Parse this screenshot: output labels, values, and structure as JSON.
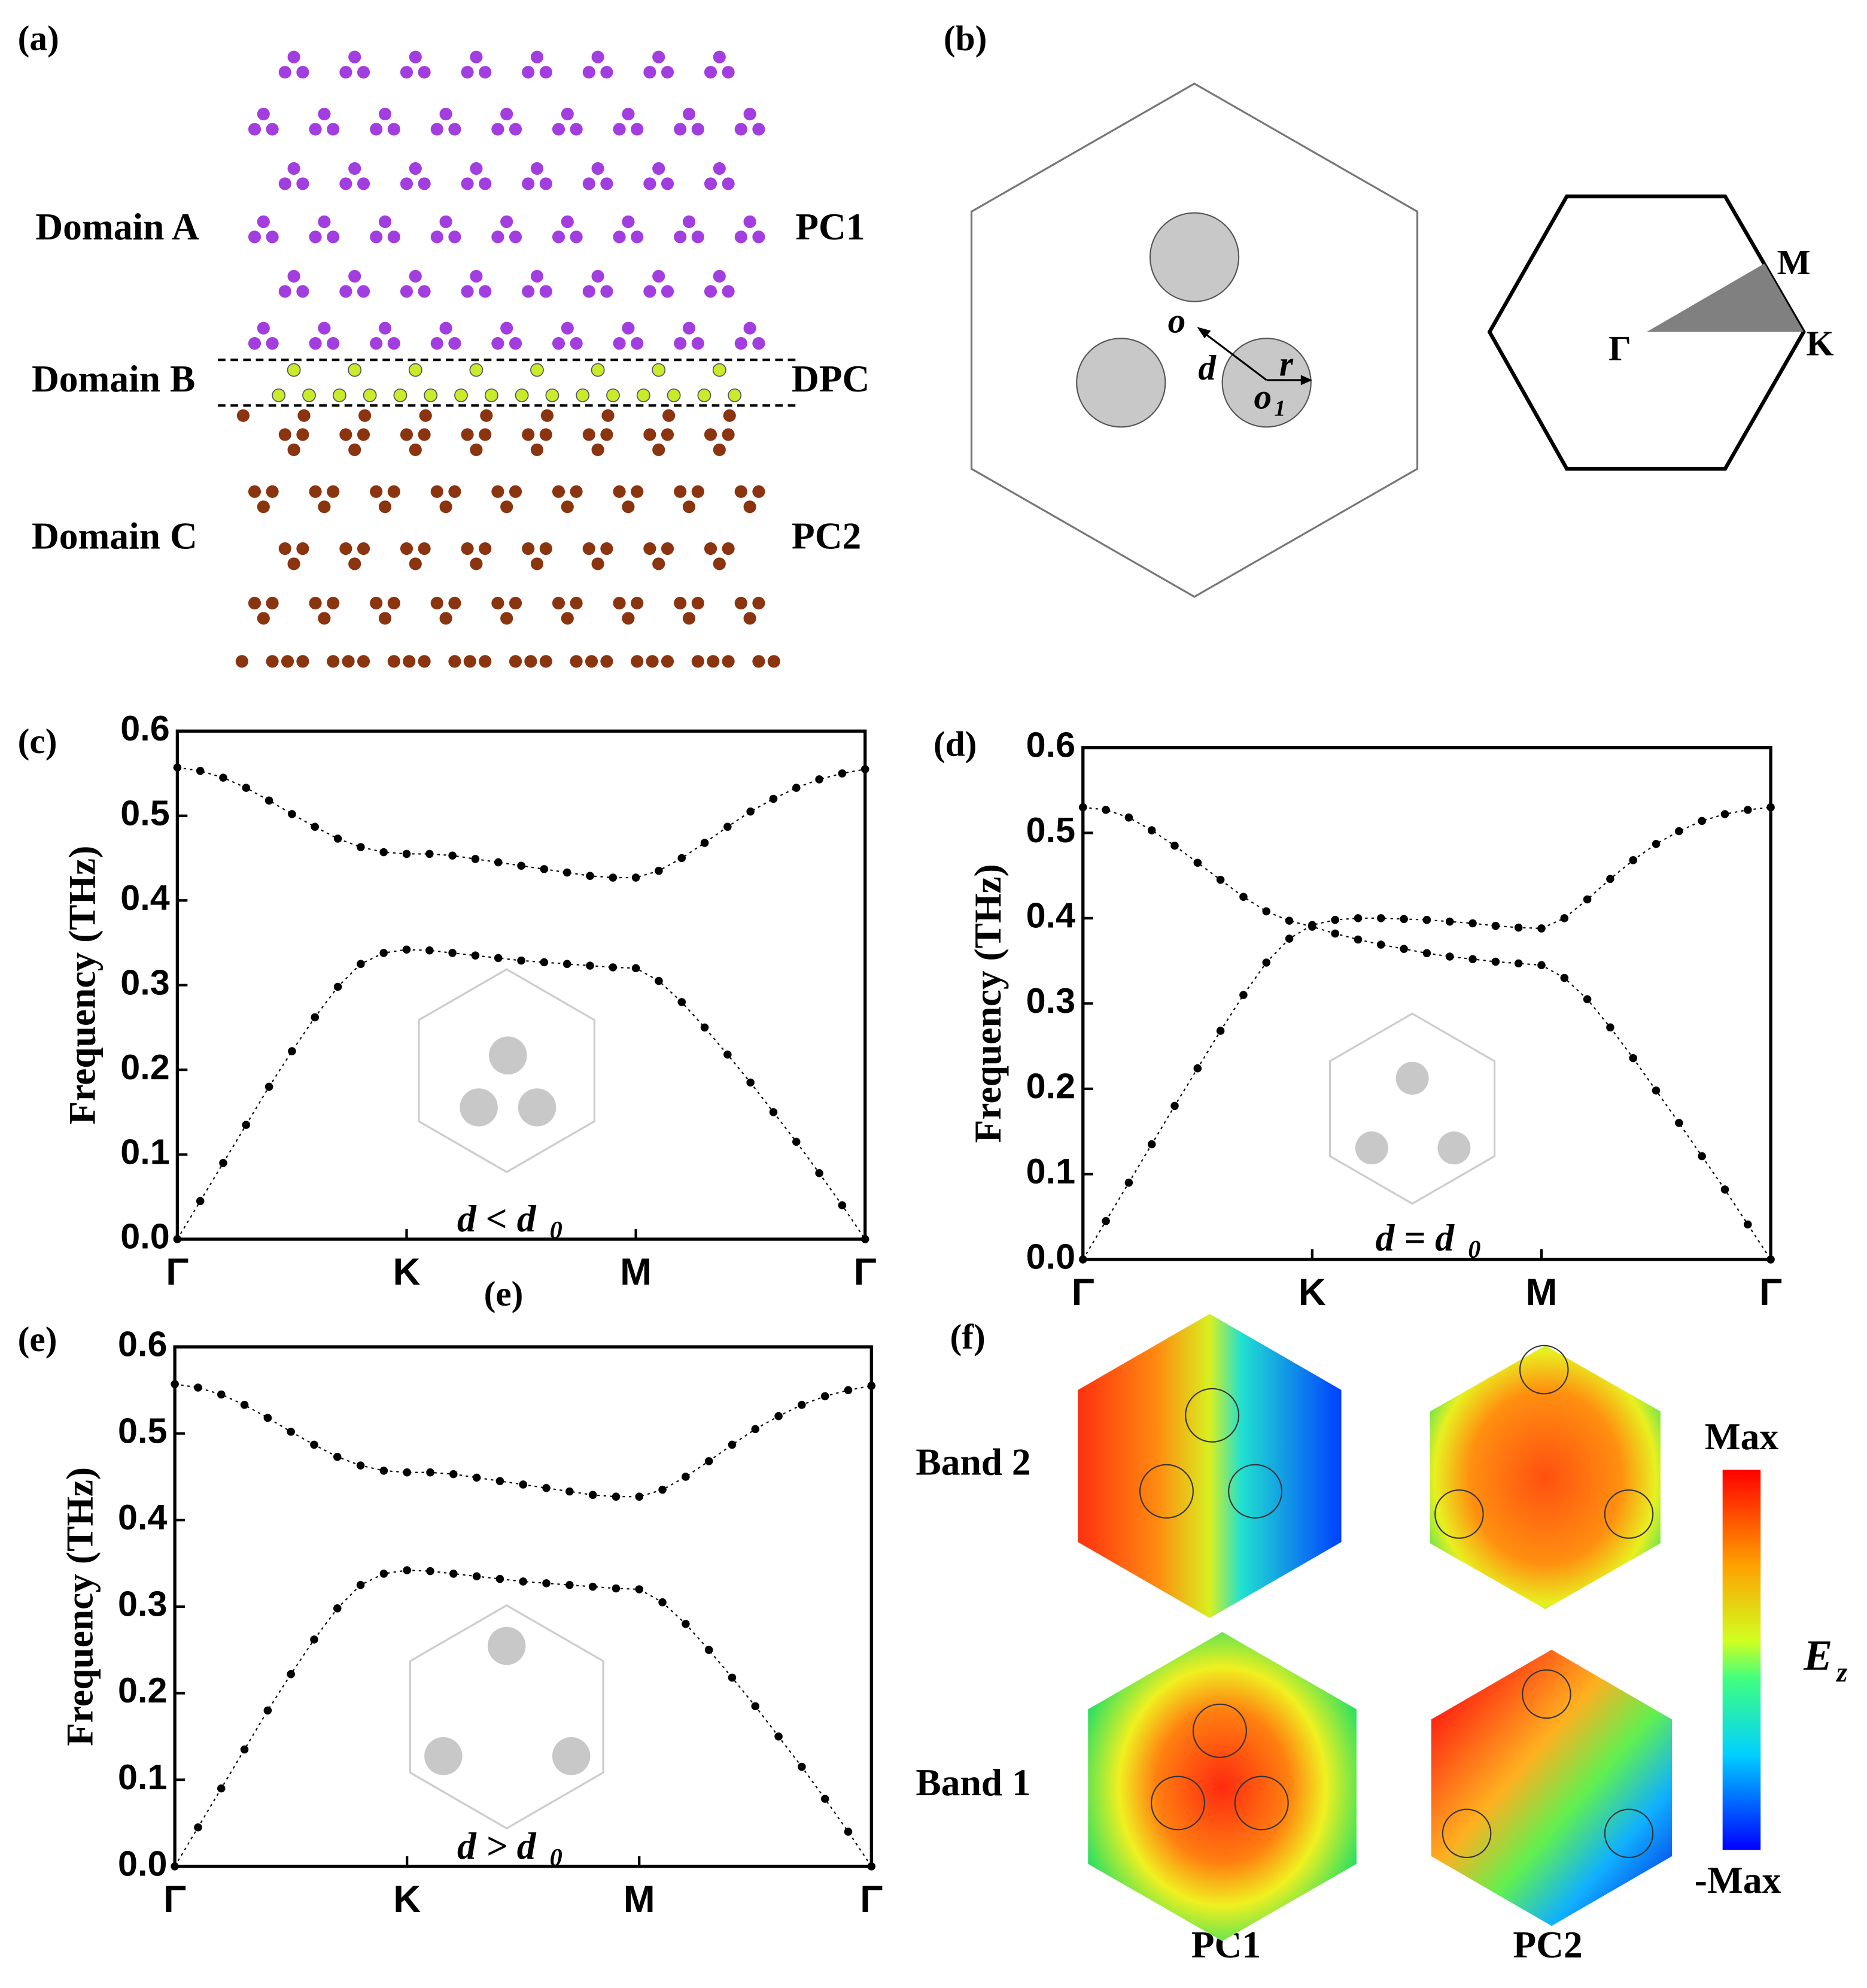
{
  "panel_a": {
    "label": "(a)",
    "domains": [
      "Domain A",
      "Domain B",
      "Domain C"
    ],
    "crystals": [
      "PC1",
      "DPC",
      "PC2"
    ]
  },
  "panel_b": {
    "label": "(b)",
    "cell_labels": {
      "o": "o",
      "d": "d",
      "r": "r",
      "o1": "o",
      "o1_sub": "1"
    },
    "bz_labels": {
      "gamma": "Γ",
      "m": "M",
      "k": "K"
    }
  },
  "stray_label": "(e)",
  "chart_data": [
    {
      "type": "line",
      "panel": "(c)",
      "ylabel": "Frequency (THz)",
      "annotation": "d < d",
      "annotation_sub": "0",
      "x": [
        0,
        0.1,
        0.2,
        0.3,
        0.4,
        0.5,
        0.6,
        0.7,
        0.8,
        0.9,
        1,
        1.1,
        1.2,
        1.3,
        1.4,
        1.5,
        1.6,
        1.7,
        1.8,
        1.9,
        2,
        2.1,
        2.2,
        2.3,
        2.4,
        2.5,
        2.6,
        2.7,
        2.8,
        2.9,
        3
      ],
      "xlim": [
        0,
        3
      ],
      "xticks": [
        {
          "value": 0,
          "label": "Γ"
        },
        {
          "value": 1,
          "label": "K"
        },
        {
          "value": 2,
          "label": "M"
        },
        {
          "value": 3,
          "label": "Γ"
        }
      ],
      "ylim": [
        0,
        0.6
      ],
      "yticks": [
        {
          "value": 0,
          "label": "0.0"
        },
        0.1,
        0.2,
        0.3,
        0.4,
        0.5,
        0.6
      ],
      "grid": false,
      "series": [
        {
          "color": "#000000",
          "values": [
            0.557,
            0.553,
            0.545,
            0.533,
            0.518,
            0.502,
            0.487,
            0.473,
            0.463,
            0.457,
            0.455,
            0.455,
            0.453,
            0.449,
            0.445,
            0.441,
            0.437,
            0.433,
            0.429,
            0.427,
            0.427,
            0.435,
            0.45,
            0.468,
            0.487,
            0.505,
            0.52,
            0.533,
            0.543,
            0.55,
            0.555
          ]
        },
        {
          "color": "#000000",
          "values": [
            0,
            0.045,
            0.09,
            0.135,
            0.18,
            0.222,
            0.262,
            0.298,
            0.325,
            0.338,
            0.342,
            0.341,
            0.338,
            0.335,
            0.332,
            0.329,
            0.327,
            0.325,
            0.323,
            0.321,
            0.32,
            0.305,
            0.28,
            0.25,
            0.218,
            0.185,
            0.15,
            0.115,
            0.078,
            0.04,
            0
          ]
        }
      ]
    },
    {
      "type": "line",
      "panel": "(d)",
      "ylabel": "Frequency (THz)",
      "annotation": "d = d",
      "annotation_sub": "0",
      "x": [
        0,
        0.1,
        0.2,
        0.3,
        0.4,
        0.5,
        0.6,
        0.7,
        0.8,
        0.9,
        1,
        1.1,
        1.2,
        1.3,
        1.4,
        1.5,
        1.6,
        1.7,
        1.8,
        1.9,
        2,
        2.1,
        2.2,
        2.3,
        2.4,
        2.5,
        2.6,
        2.7,
        2.8,
        2.9,
        3
      ],
      "xlim": [
        0,
        3
      ],
      "xticks": [
        {
          "value": 0,
          "label": "Γ"
        },
        {
          "value": 1,
          "label": "K"
        },
        {
          "value": 2,
          "label": "M"
        },
        {
          "value": 3,
          "label": "Γ"
        }
      ],
      "ylim": [
        0,
        0.6
      ],
      "yticks": [
        {
          "value": 0,
          "label": "0.0"
        },
        0.1,
        0.2,
        0.3,
        0.4,
        0.5,
        0.6
      ],
      "grid": false,
      "series": [
        {
          "color": "#000000",
          "values": [
            0.53,
            0.527,
            0.518,
            0.503,
            0.485,
            0.465,
            0.445,
            0.425,
            0.408,
            0.397,
            0.39,
            0.382,
            0.375,
            0.369,
            0.364,
            0.359,
            0.355,
            0.352,
            0.349,
            0.347,
            0.345,
            0.33,
            0.305,
            0.272,
            0.236,
            0.198,
            0.16,
            0.121,
            0.082,
            0.041,
            0
          ]
        },
        {
          "color": "#000000",
          "values": [
            0,
            0.045,
            0.09,
            0.135,
            0.18,
            0.224,
            0.268,
            0.31,
            0.348,
            0.376,
            0.392,
            0.398,
            0.4,
            0.4,
            0.399,
            0.398,
            0.396,
            0.394,
            0.391,
            0.389,
            0.388,
            0.4,
            0.422,
            0.446,
            0.468,
            0.487,
            0.502,
            0.514,
            0.522,
            0.527,
            0.53
          ]
        }
      ]
    },
    {
      "type": "line",
      "panel": "(e)",
      "ylabel": "Frequency (THz)",
      "annotation": "d > d",
      "annotation_sub": "0",
      "x": [
        0,
        0.1,
        0.2,
        0.3,
        0.4,
        0.5,
        0.6,
        0.7,
        0.8,
        0.9,
        1,
        1.1,
        1.2,
        1.3,
        1.4,
        1.5,
        1.6,
        1.7,
        1.8,
        1.9,
        2,
        2.1,
        2.2,
        2.3,
        2.4,
        2.5,
        2.6,
        2.7,
        2.8,
        2.9,
        3
      ],
      "xlim": [
        0,
        3
      ],
      "xticks": [
        {
          "value": 0,
          "label": "Γ"
        },
        {
          "value": 1,
          "label": "K"
        },
        {
          "value": 2,
          "label": "M"
        },
        {
          "value": 3,
          "label": "Γ"
        }
      ],
      "ylim": [
        0,
        0.6
      ],
      "yticks": [
        {
          "value": 0,
          "label": "0.0"
        },
        0.1,
        0.2,
        0.3,
        0.4,
        0.5,
        0.6
      ],
      "grid": false,
      "series": [
        {
          "color": "#000000",
          "values": [
            0.557,
            0.553,
            0.545,
            0.533,
            0.518,
            0.502,
            0.487,
            0.473,
            0.463,
            0.457,
            0.455,
            0.455,
            0.453,
            0.449,
            0.445,
            0.441,
            0.437,
            0.433,
            0.429,
            0.427,
            0.427,
            0.435,
            0.45,
            0.468,
            0.487,
            0.505,
            0.52,
            0.533,
            0.543,
            0.55,
            0.555
          ]
        },
        {
          "color": "#000000",
          "values": [
            0,
            0.045,
            0.09,
            0.135,
            0.18,
            0.222,
            0.262,
            0.298,
            0.325,
            0.338,
            0.342,
            0.341,
            0.338,
            0.335,
            0.332,
            0.329,
            0.327,
            0.325,
            0.323,
            0.321,
            0.32,
            0.305,
            0.28,
            0.25,
            0.218,
            0.185,
            0.15,
            0.115,
            0.078,
            0.04,
            0
          ]
        }
      ]
    }
  ],
  "panel_f": {
    "label": "(f)",
    "rows": [
      "Band 2",
      "Band 1"
    ],
    "columns": [
      "PC1",
      "PC2"
    ],
    "colorbar": {
      "max": "Max",
      "min": "-Max",
      "quantity": "E",
      "quantity_sub": "z"
    }
  }
}
